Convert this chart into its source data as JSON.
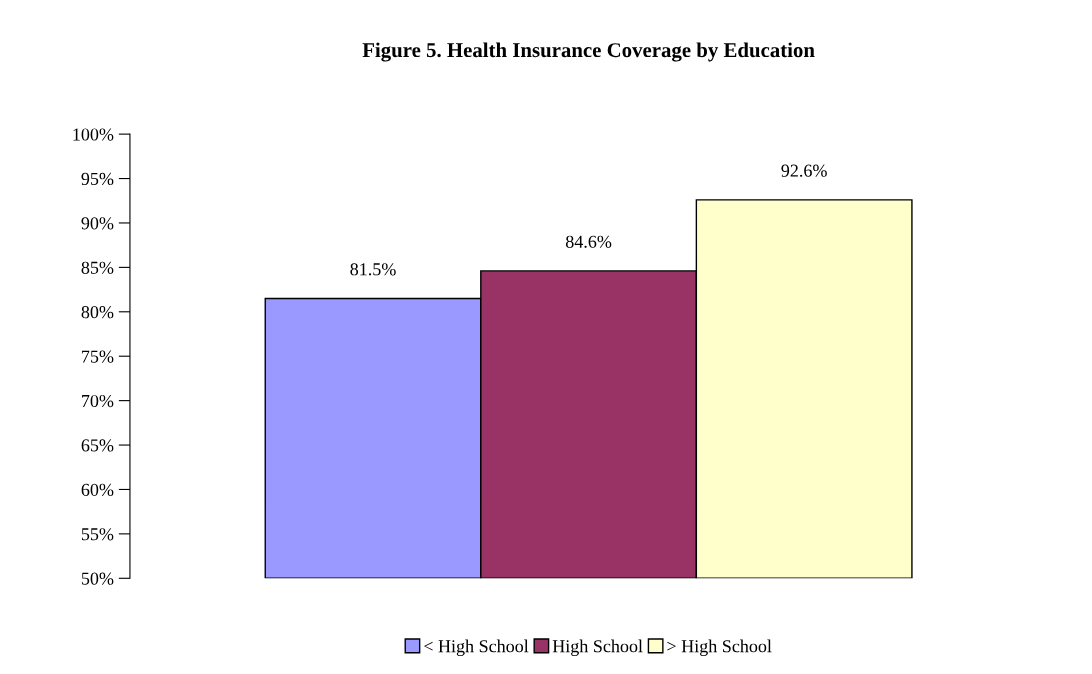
{
  "chart_data": {
    "type": "bar",
    "title": "Figure 5. Health Insurance Coverage by Education",
    "categories": [
      null
    ],
    "series": [
      {
        "name": "< High School",
        "color": "#9999ff",
        "values": [
          81.5
        ]
      },
      {
        "name": "High School",
        "color": "#993366",
        "values": [
          84.6
        ]
      },
      {
        "name": "> High School",
        "color": "#ffffcc",
        "values": [
          92.6
        ]
      }
    ],
    "ylim": [
      50,
      100
    ],
    "yticks": [
      {
        "value": 50,
        "label": "50%"
      },
      {
        "value": 55,
        "label": "55%"
      },
      {
        "value": 60,
        "label": "60%"
      },
      {
        "value": 65,
        "label": "65%"
      },
      {
        "value": 70,
        "label": "70%"
      },
      {
        "value": 75,
        "label": "75%"
      },
      {
        "value": 80,
        "label": "80%"
      },
      {
        "value": 85,
        "label": "85%"
      },
      {
        "value": 90,
        "label": "90%"
      },
      {
        "value": 95,
        "label": "95%"
      },
      {
        "value": 100,
        "label": "100%"
      }
    ],
    "value_labels": [
      [
        "81.5%"
      ],
      [
        "84.6%"
      ],
      [
        "92.6%"
      ]
    ],
    "tick_labels": "y",
    "legend": "bottom",
    "grid": false
  }
}
